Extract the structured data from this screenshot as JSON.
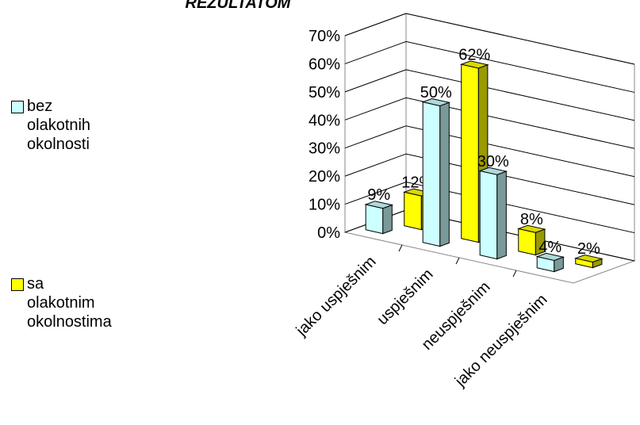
{
  "chart_data": {
    "type": "bar3d",
    "title": "REZULTATOM",
    "categories": [
      "jako uspješnim",
      "uspješnim",
      "neuspješnim",
      "jako neuspješnim"
    ],
    "series": [
      {
        "name": "bez olakotnih okolnosti",
        "color": "#ccffff",
        "values": [
          9,
          50,
          30,
          4
        ],
        "value_labels": [
          "9%",
          "50%",
          "30%",
          "4%"
        ]
      },
      {
        "name": "sa olakotnim okolnostima",
        "color": "#ffff00",
        "values": [
          12,
          62,
          8,
          2
        ],
        "value_labels": [
          "12%",
          "62%",
          "8%",
          "2%"
        ]
      }
    ],
    "ylim": [
      0,
      70
    ],
    "yticks": [
      {
        "value": 0,
        "label": "0%"
      },
      {
        "value": 10,
        "label": "10%"
      },
      {
        "value": 20,
        "label": "20%"
      },
      {
        "value": 30,
        "label": "30%"
      },
      {
        "value": 40,
        "label": "40%"
      },
      {
        "value": 50,
        "label": "50%"
      },
      {
        "value": 60,
        "label": "60%"
      },
      {
        "value": 70,
        "label": "70%"
      }
    ],
    "grid": true
  }
}
